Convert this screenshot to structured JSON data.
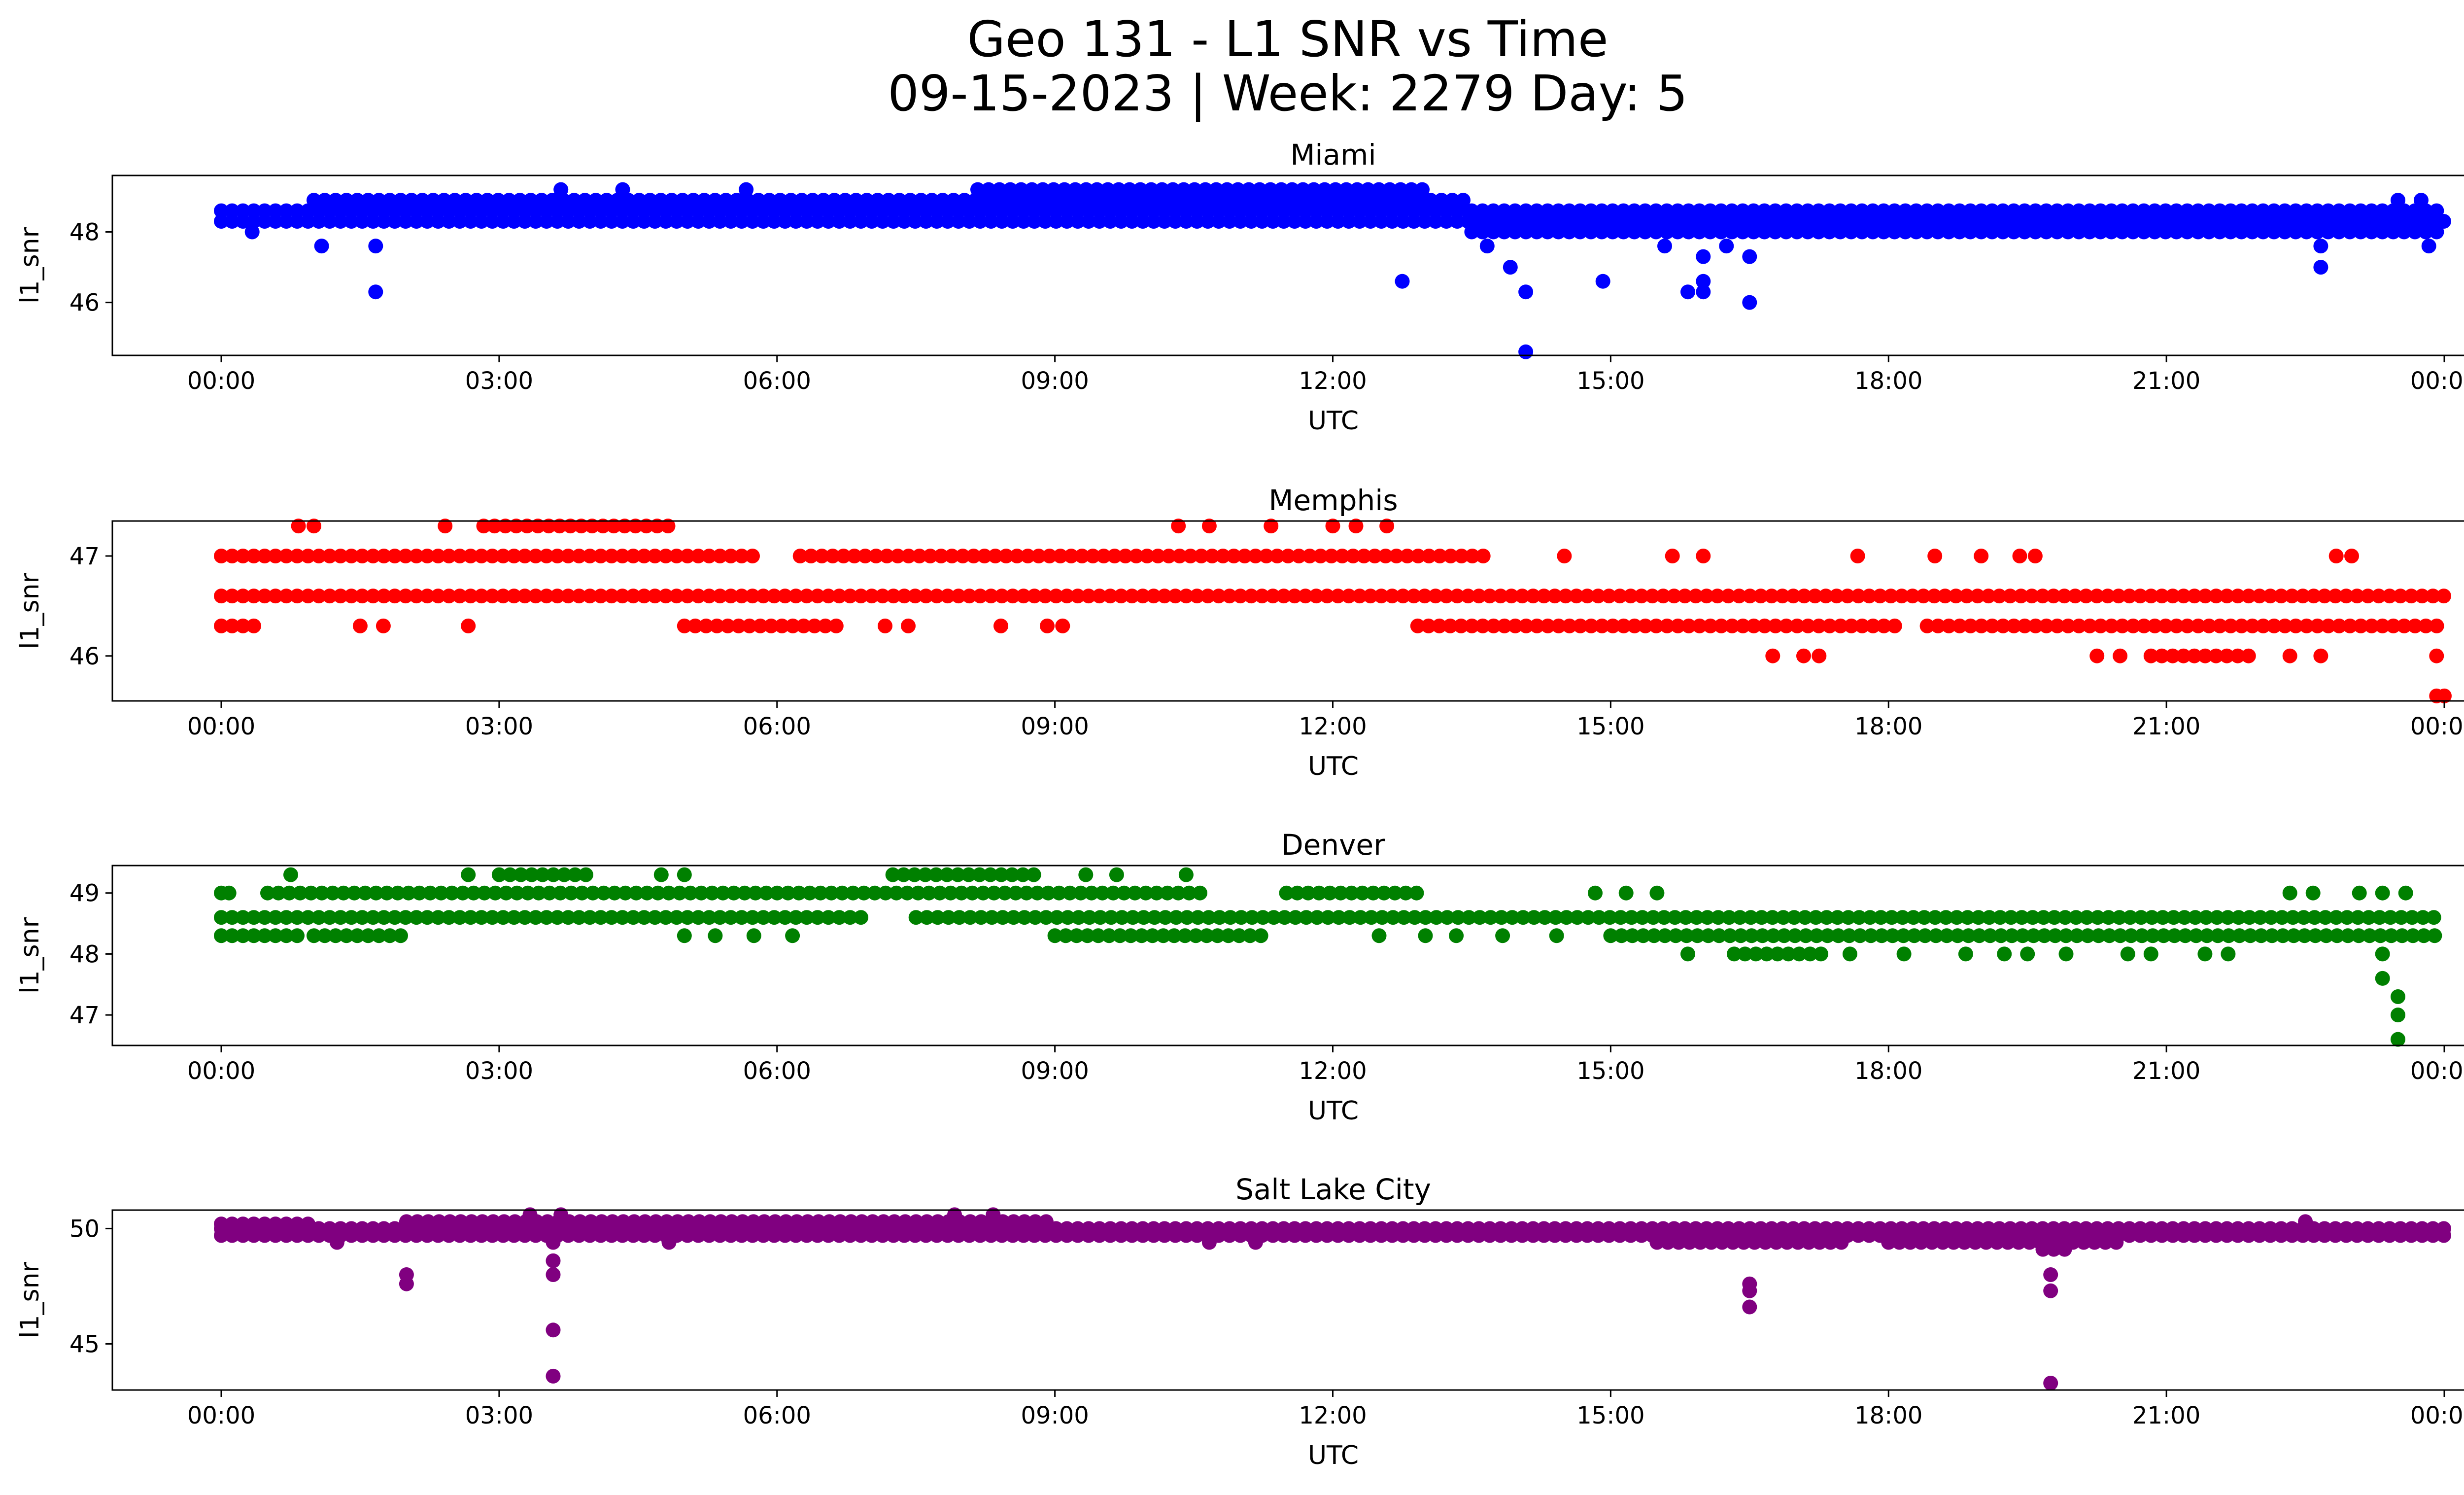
{
  "figure": {
    "title": "Geo 131 - L1 SNR vs Time",
    "subtitle": "09-15-2023 | Week: 2279 Day: 5"
  },
  "chart_data": [
    {
      "type": "scatter",
      "title": "Miami",
      "xlabel": "UTC",
      "ylabel": "l1_snr",
      "color": "#0000ff",
      "xlim": [
        "23:48",
        "24:48"
      ],
      "ylim": [
        44.5,
        49.6
      ],
      "xticks": [
        "00:00",
        "03:00",
        "06:00",
        "09:00",
        "12:00",
        "15:00",
        "18:00",
        "21:00",
        "00:00"
      ],
      "yticks": [
        46,
        48
      ],
      "bands": [
        {
          "y": 48.3,
          "from": "00:00",
          "to": "24:00"
        },
        {
          "y": 48.6,
          "from": "00:00",
          "to": "13:30"
        },
        {
          "y": 48.6,
          "from": "13:30",
          "to": "24:00"
        },
        {
          "y": 48.9,
          "from": "01:00",
          "to": "13:30"
        },
        {
          "y": 49.2,
          "from": "08:10",
          "to": "13:00"
        },
        {
          "y": 48.0,
          "from": "13:30",
          "to": "24:00"
        }
      ],
      "scatter_points": [
        {
          "x": "00:20",
          "y": 48.0
        },
        {
          "x": "01:05",
          "y": 47.6
        },
        {
          "x": "01:40",
          "y": 47.6
        },
        {
          "x": "01:40",
          "y": 46.3
        },
        {
          "x": "12:45",
          "y": 46.6
        },
        {
          "x": "13:40",
          "y": 47.6
        },
        {
          "x": "13:55",
          "y": 47.0
        },
        {
          "x": "14:05",
          "y": 46.3
        },
        {
          "x": "14:05",
          "y": 44.6
        },
        {
          "x": "14:55",
          "y": 46.6
        },
        {
          "x": "15:50",
          "y": 46.3
        },
        {
          "x": "15:35",
          "y": 47.6
        },
        {
          "x": "16:00",
          "y": 47.3
        },
        {
          "x": "16:00",
          "y": 46.6
        },
        {
          "x": "16:00",
          "y": 46.3
        },
        {
          "x": "16:15",
          "y": 47.6
        },
        {
          "x": "16:30",
          "y": 47.3
        },
        {
          "x": "16:30",
          "y": 46.0
        },
        {
          "x": "22:40",
          "y": 47.6
        },
        {
          "x": "22:40",
          "y": 47.0
        },
        {
          "x": "23:50",
          "y": 47.6
        },
        {
          "x": "03:40",
          "y": 49.2
        },
        {
          "x": "04:20",
          "y": 49.2
        },
        {
          "x": "05:40",
          "y": 49.2
        },
        {
          "x": "23:30",
          "y": 48.9
        },
        {
          "x": "23:45",
          "y": 48.9
        }
      ]
    },
    {
      "type": "scatter",
      "title": "Memphis",
      "xlabel": "UTC",
      "ylabel": "l1_snr",
      "color": "#ff0000",
      "xlim": [
        "23:48",
        "24:48"
      ],
      "ylim": [
        45.55,
        47.35
      ],
      "xticks": [
        "00:00",
        "03:00",
        "06:00",
        "09:00",
        "12:00",
        "15:00",
        "18:00",
        "21:00",
        "00:00"
      ],
      "yticks": [
        46,
        47
      ],
      "bands": [
        {
          "y": 46.6,
          "from": "00:00",
          "to": "24:00"
        },
        {
          "y": 47.0,
          "from": "00:00",
          "to": "05:50"
        },
        {
          "y": 47.0,
          "from": "06:15",
          "to": "13:40"
        },
        {
          "y": 46.3,
          "from": "00:00",
          "to": "00:25"
        },
        {
          "y": 46.3,
          "from": "05:00",
          "to": "06:40"
        },
        {
          "y": 46.3,
          "from": "12:55",
          "to": "18:10"
        },
        {
          "y": 46.3,
          "from": "18:25",
          "to": "24:00"
        },
        {
          "y": 47.3,
          "from": "02:50",
          "to": "04:50"
        },
        {
          "y": 46.0,
          "from": "20:50",
          "to": "22:00"
        }
      ],
      "scatter_points": [
        {
          "x": "00:50",
          "y": 47.3
        },
        {
          "x": "01:00",
          "y": 47.3
        },
        {
          "x": "02:25",
          "y": 47.3
        },
        {
          "x": "10:20",
          "y": 47.3
        },
        {
          "x": "10:40",
          "y": 47.3
        },
        {
          "x": "11:20",
          "y": 47.3
        },
        {
          "x": "12:00",
          "y": 47.3
        },
        {
          "x": "12:15",
          "y": 47.3
        },
        {
          "x": "12:35",
          "y": 47.3
        },
        {
          "x": "01:30",
          "y": 46.3
        },
        {
          "x": "01:45",
          "y": 46.3
        },
        {
          "x": "02:40",
          "y": 46.3
        },
        {
          "x": "07:10",
          "y": 46.3
        },
        {
          "x": "07:25",
          "y": 46.3
        },
        {
          "x": "08:25",
          "y": 46.3
        },
        {
          "x": "08:55",
          "y": 46.3
        },
        {
          "x": "09:05",
          "y": 46.3
        },
        {
          "x": "14:30",
          "y": 47.0
        },
        {
          "x": "15:40",
          "y": 47.0
        },
        {
          "x": "16:00",
          "y": 47.0
        },
        {
          "x": "17:40",
          "y": 47.0
        },
        {
          "x": "18:30",
          "y": 47.0
        },
        {
          "x": "19:00",
          "y": 47.0
        },
        {
          "x": "19:25",
          "y": 47.0
        },
        {
          "x": "19:35",
          "y": 47.0
        },
        {
          "x": "22:50",
          "y": 47.0
        },
        {
          "x": "23:00",
          "y": 47.0
        },
        {
          "x": "16:45",
          "y": 46.0
        },
        {
          "x": "17:05",
          "y": 46.0
        },
        {
          "x": "17:15",
          "y": 46.0
        },
        {
          "x": "20:15",
          "y": 46.0
        },
        {
          "x": "20:30",
          "y": 46.0
        },
        {
          "x": "22:20",
          "y": 46.0
        },
        {
          "x": "22:40",
          "y": 46.0
        },
        {
          "x": "23:55",
          "y": 46.0
        },
        {
          "x": "23:55",
          "y": 45.6
        },
        {
          "x": "24:00",
          "y": 45.6
        }
      ]
    },
    {
      "type": "scatter",
      "title": "Denver",
      "xlabel": "UTC",
      "ylabel": "l1_snr",
      "color": "#008000",
      "xlim": [
        "23:48",
        "24:48"
      ],
      "ylim": [
        46.5,
        49.45
      ],
      "xticks": [
        "00:00",
        "03:00",
        "06:00",
        "09:00",
        "12:00",
        "15:00",
        "18:00",
        "21:00",
        "00:00"
      ],
      "yticks": [
        47,
        48,
        49
      ],
      "bands": [
        {
          "y": 48.6,
          "from": "00:00",
          "to": "07:00"
        },
        {
          "y": 48.6,
          "from": "07:30",
          "to": "24:00"
        },
        {
          "y": 49.0,
          "from": "00:30",
          "to": "10:40"
        },
        {
          "y": 49.0,
          "from": "11:30",
          "to": "13:00"
        },
        {
          "y": 49.3,
          "from": "03:00",
          "to": "04:00"
        },
        {
          "y": 49.3,
          "from": "07:15",
          "to": "08:50"
        },
        {
          "y": 48.3,
          "from": "00:00",
          "to": "00:50"
        },
        {
          "y": 48.3,
          "from": "01:00",
          "to": "02:00"
        },
        {
          "y": 48.3,
          "from": "09:00",
          "to": "11:20"
        },
        {
          "y": 48.3,
          "from": "15:00",
          "to": "24:00"
        },
        {
          "y": 48.0,
          "from": "16:20",
          "to": "17:20"
        }
      ],
      "scatter_points": [
        {
          "x": "00:00",
          "y": 49.0
        },
        {
          "x": "00:05",
          "y": 49.0
        },
        {
          "x": "00:45",
          "y": 49.3
        },
        {
          "x": "02:40",
          "y": 49.3
        },
        {
          "x": "04:45",
          "y": 49.3
        },
        {
          "x": "05:00",
          "y": 49.3
        },
        {
          "x": "09:20",
          "y": 49.3
        },
        {
          "x": "09:40",
          "y": 49.3
        },
        {
          "x": "10:25",
          "y": 49.3
        },
        {
          "x": "14:50",
          "y": 49.0
        },
        {
          "x": "15:10",
          "y": 49.0
        },
        {
          "x": "15:30",
          "y": 49.0
        },
        {
          "x": "22:20",
          "y": 49.0
        },
        {
          "x": "22:35",
          "y": 49.0
        },
        {
          "x": "23:05",
          "y": 49.0
        },
        {
          "x": "23:20",
          "y": 49.0
        },
        {
          "x": "23:35",
          "y": 49.0
        },
        {
          "x": "05:00",
          "y": 48.3
        },
        {
          "x": "05:20",
          "y": 48.3
        },
        {
          "x": "05:45",
          "y": 48.3
        },
        {
          "x": "06:10",
          "y": 48.3
        },
        {
          "x": "12:30",
          "y": 48.3
        },
        {
          "x": "13:00",
          "y": 48.3
        },
        {
          "x": "13:20",
          "y": 48.3
        },
        {
          "x": "13:50",
          "y": 48.3
        },
        {
          "x": "14:25",
          "y": 48.3
        },
        {
          "x": "15:50",
          "y": 48.0
        },
        {
          "x": "17:35",
          "y": 48.0
        },
        {
          "x": "18:10",
          "y": 48.0
        },
        {
          "x": "18:50",
          "y": 48.0
        },
        {
          "x": "19:15",
          "y": 48.0
        },
        {
          "x": "19:30",
          "y": 48.0
        },
        {
          "x": "19:55",
          "y": 48.0
        },
        {
          "x": "20:35",
          "y": 48.0
        },
        {
          "x": "20:50",
          "y": 48.0
        },
        {
          "x": "21:25",
          "y": 48.0
        },
        {
          "x": "21:40",
          "y": 48.0
        },
        {
          "x": "23:20",
          "y": 48.0
        },
        {
          "x": "23:20",
          "y": 47.6
        },
        {
          "x": "23:30",
          "y": 47.3
        },
        {
          "x": "23:30",
          "y": 47.0
        },
        {
          "x": "23:30",
          "y": 46.6
        }
      ]
    },
    {
      "type": "scatter",
      "title": "Salt Lake City",
      "xlabel": "UTC",
      "ylabel": "l1_snr",
      "color": "#800080",
      "xlim": [
        "23:48",
        "24:48"
      ],
      "ylim": [
        43,
        50.8
      ],
      "xticks": [
        "00:00",
        "03:00",
        "06:00",
        "09:00",
        "12:00",
        "15:00",
        "18:00",
        "21:00",
        "00:00"
      ],
      "yticks": [
        45,
        50
      ],
      "bands": [
        {
          "y": 49.7,
          "from": "00:00",
          "to": "24:00"
        },
        {
          "y": 50.0,
          "from": "00:00",
          "to": "24:00"
        },
        {
          "y": 50.2,
          "from": "00:00",
          "to": "01:00"
        },
        {
          "y": 50.3,
          "from": "02:00",
          "to": "09:00"
        },
        {
          "y": 49.4,
          "from": "15:30",
          "to": "17:30"
        },
        {
          "y": 49.4,
          "from": "18:00",
          "to": "20:30"
        },
        {
          "y": 49.1,
          "from": "19:40",
          "to": "20:00"
        }
      ],
      "scatter_points": [
        {
          "x": "02:00",
          "y": 48.0
        },
        {
          "x": "02:00",
          "y": 47.6
        },
        {
          "x": "03:20",
          "y": 50.6
        },
        {
          "x": "03:35",
          "y": 49.4
        },
        {
          "x": "03:35",
          "y": 48.6
        },
        {
          "x": "03:35",
          "y": 48.0
        },
        {
          "x": "03:35",
          "y": 45.6
        },
        {
          "x": "03:35",
          "y": 43.6
        },
        {
          "x": "03:40",
          "y": 50.6
        },
        {
          "x": "07:55",
          "y": 50.6
        },
        {
          "x": "08:20",
          "y": 50.6
        },
        {
          "x": "16:30",
          "y": 47.6
        },
        {
          "x": "16:30",
          "y": 47.3
        },
        {
          "x": "16:30",
          "y": 46.6
        },
        {
          "x": "19:45",
          "y": 48.0
        },
        {
          "x": "19:45",
          "y": 47.3
        },
        {
          "x": "19:45",
          "y": 43.3
        },
        {
          "x": "01:15",
          "y": 49.4
        },
        {
          "x": "04:50",
          "y": 49.4
        },
        {
          "x": "10:40",
          "y": 49.4
        },
        {
          "x": "11:10",
          "y": 49.4
        },
        {
          "x": "22:30",
          "y": 50.3
        }
      ]
    }
  ]
}
